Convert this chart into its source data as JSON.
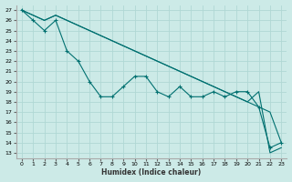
{
  "xlabel": "Humidex (Indice chaleur)",
  "xlim": [
    -0.5,
    23.5
  ],
  "ylim": [
    12.5,
    27.5
  ],
  "yticks": [
    13,
    14,
    15,
    16,
    17,
    18,
    19,
    20,
    21,
    22,
    23,
    24,
    25,
    26,
    27
  ],
  "xticks": [
    0,
    1,
    2,
    3,
    4,
    5,
    6,
    7,
    8,
    9,
    10,
    11,
    12,
    13,
    14,
    15,
    16,
    17,
    18,
    19,
    20,
    21,
    22,
    23
  ],
  "bg_color": "#cceae7",
  "grid_color": "#b0d8d4",
  "line_color": "#007070",
  "series": [
    {
      "x": [
        0,
        1,
        2,
        3,
        4,
        5,
        6,
        7,
        8,
        9,
        10,
        11,
        12,
        13,
        14,
        15,
        16,
        17,
        18,
        19,
        20,
        21,
        22,
        23
      ],
      "y": [
        27,
        26,
        25,
        26,
        23,
        22,
        20,
        18.5,
        18.5,
        19.5,
        20.5,
        20.5,
        19.0,
        18.5,
        19.5,
        18.5,
        18.5,
        19.0,
        18.5,
        19.0,
        19.0,
        17.5,
        13.5,
        14.0
      ]
    },
    {
      "x": [
        0,
        1,
        2,
        3,
        4,
        5,
        6,
        7,
        8,
        9,
        10,
        11,
        12,
        13,
        14,
        15,
        16,
        17,
        18,
        19,
        20,
        21,
        22,
        23
      ],
      "y": [
        27,
        26.5,
        26,
        26.5,
        26,
        25.5,
        25,
        24.5,
        24,
        23.5,
        23,
        22.5,
        22,
        21.5,
        21,
        20.5,
        20,
        19.5,
        19,
        18.5,
        18,
        17.5,
        17,
        14
      ]
    },
    {
      "x": [
        0,
        1,
        2,
        3,
        4,
        5,
        6,
        7,
        8,
        9,
        10,
        11,
        12,
        13,
        14,
        15,
        16,
        17,
        18,
        19,
        20,
        21,
        22,
        23
      ],
      "y": [
        27,
        26.5,
        26,
        26.5,
        26,
        25.5,
        25,
        24.5,
        24,
        23.5,
        23,
        22.5,
        22,
        21.5,
        21,
        20.5,
        20,
        19.5,
        19,
        18.5,
        18,
        19,
        13,
        13.5
      ]
    }
  ]
}
